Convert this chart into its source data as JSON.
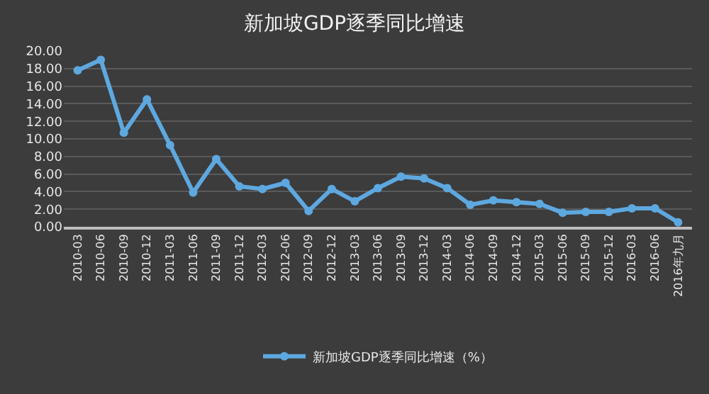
{
  "chart_data": {
    "type": "line",
    "title": "新加坡GDP逐季同比增速",
    "categories": [
      "2010-03",
      "2010-06",
      "2010-09",
      "2010-12",
      "2011-03",
      "2011-06",
      "2011-09",
      "2011-12",
      "2012-03",
      "2012-06",
      "2012-09",
      "2012-12",
      "2013-03",
      "2013-06",
      "2013-09",
      "2013-12",
      "2014-03",
      "2014-06",
      "2014-09",
      "2014-12",
      "2015-03",
      "2015-06",
      "2015-09",
      "2015-12",
      "2016-03",
      "2016-06",
      "2016年九月"
    ],
    "series": [
      {
        "name": "新加坡GDP逐季同比增速（%）",
        "color": "#5ea8e0",
        "values": [
          17.8,
          19.0,
          10.7,
          14.5,
          9.3,
          3.9,
          7.7,
          4.6,
          4.3,
          5.0,
          1.8,
          4.3,
          2.9,
          4.4,
          5.7,
          5.5,
          4.4,
          2.5,
          3.0,
          2.8,
          2.6,
          1.6,
          1.7,
          1.7,
          2.1,
          2.1,
          0.5
        ]
      }
    ],
    "ylim": [
      0,
      20
    ],
    "yticks": [
      {
        "value": 0,
        "label": "0.00"
      },
      {
        "value": 2,
        "label": "2.00"
      },
      {
        "value": 4,
        "label": "4.00"
      },
      {
        "value": 6,
        "label": "6.00"
      },
      {
        "value": 8,
        "label": "8.00"
      },
      {
        "value": 10,
        "label": "10.00"
      },
      {
        "value": 12,
        "label": "12.00"
      },
      {
        "value": 14,
        "label": "14.00"
      },
      {
        "value": 16,
        "label": "16.00"
      },
      {
        "value": 18,
        "label": "18.00"
      },
      {
        "value": 20,
        "label": "20.00"
      }
    ],
    "grid": "y",
    "legend": "bottom",
    "marker": "circle",
    "line_style": "solid"
  }
}
